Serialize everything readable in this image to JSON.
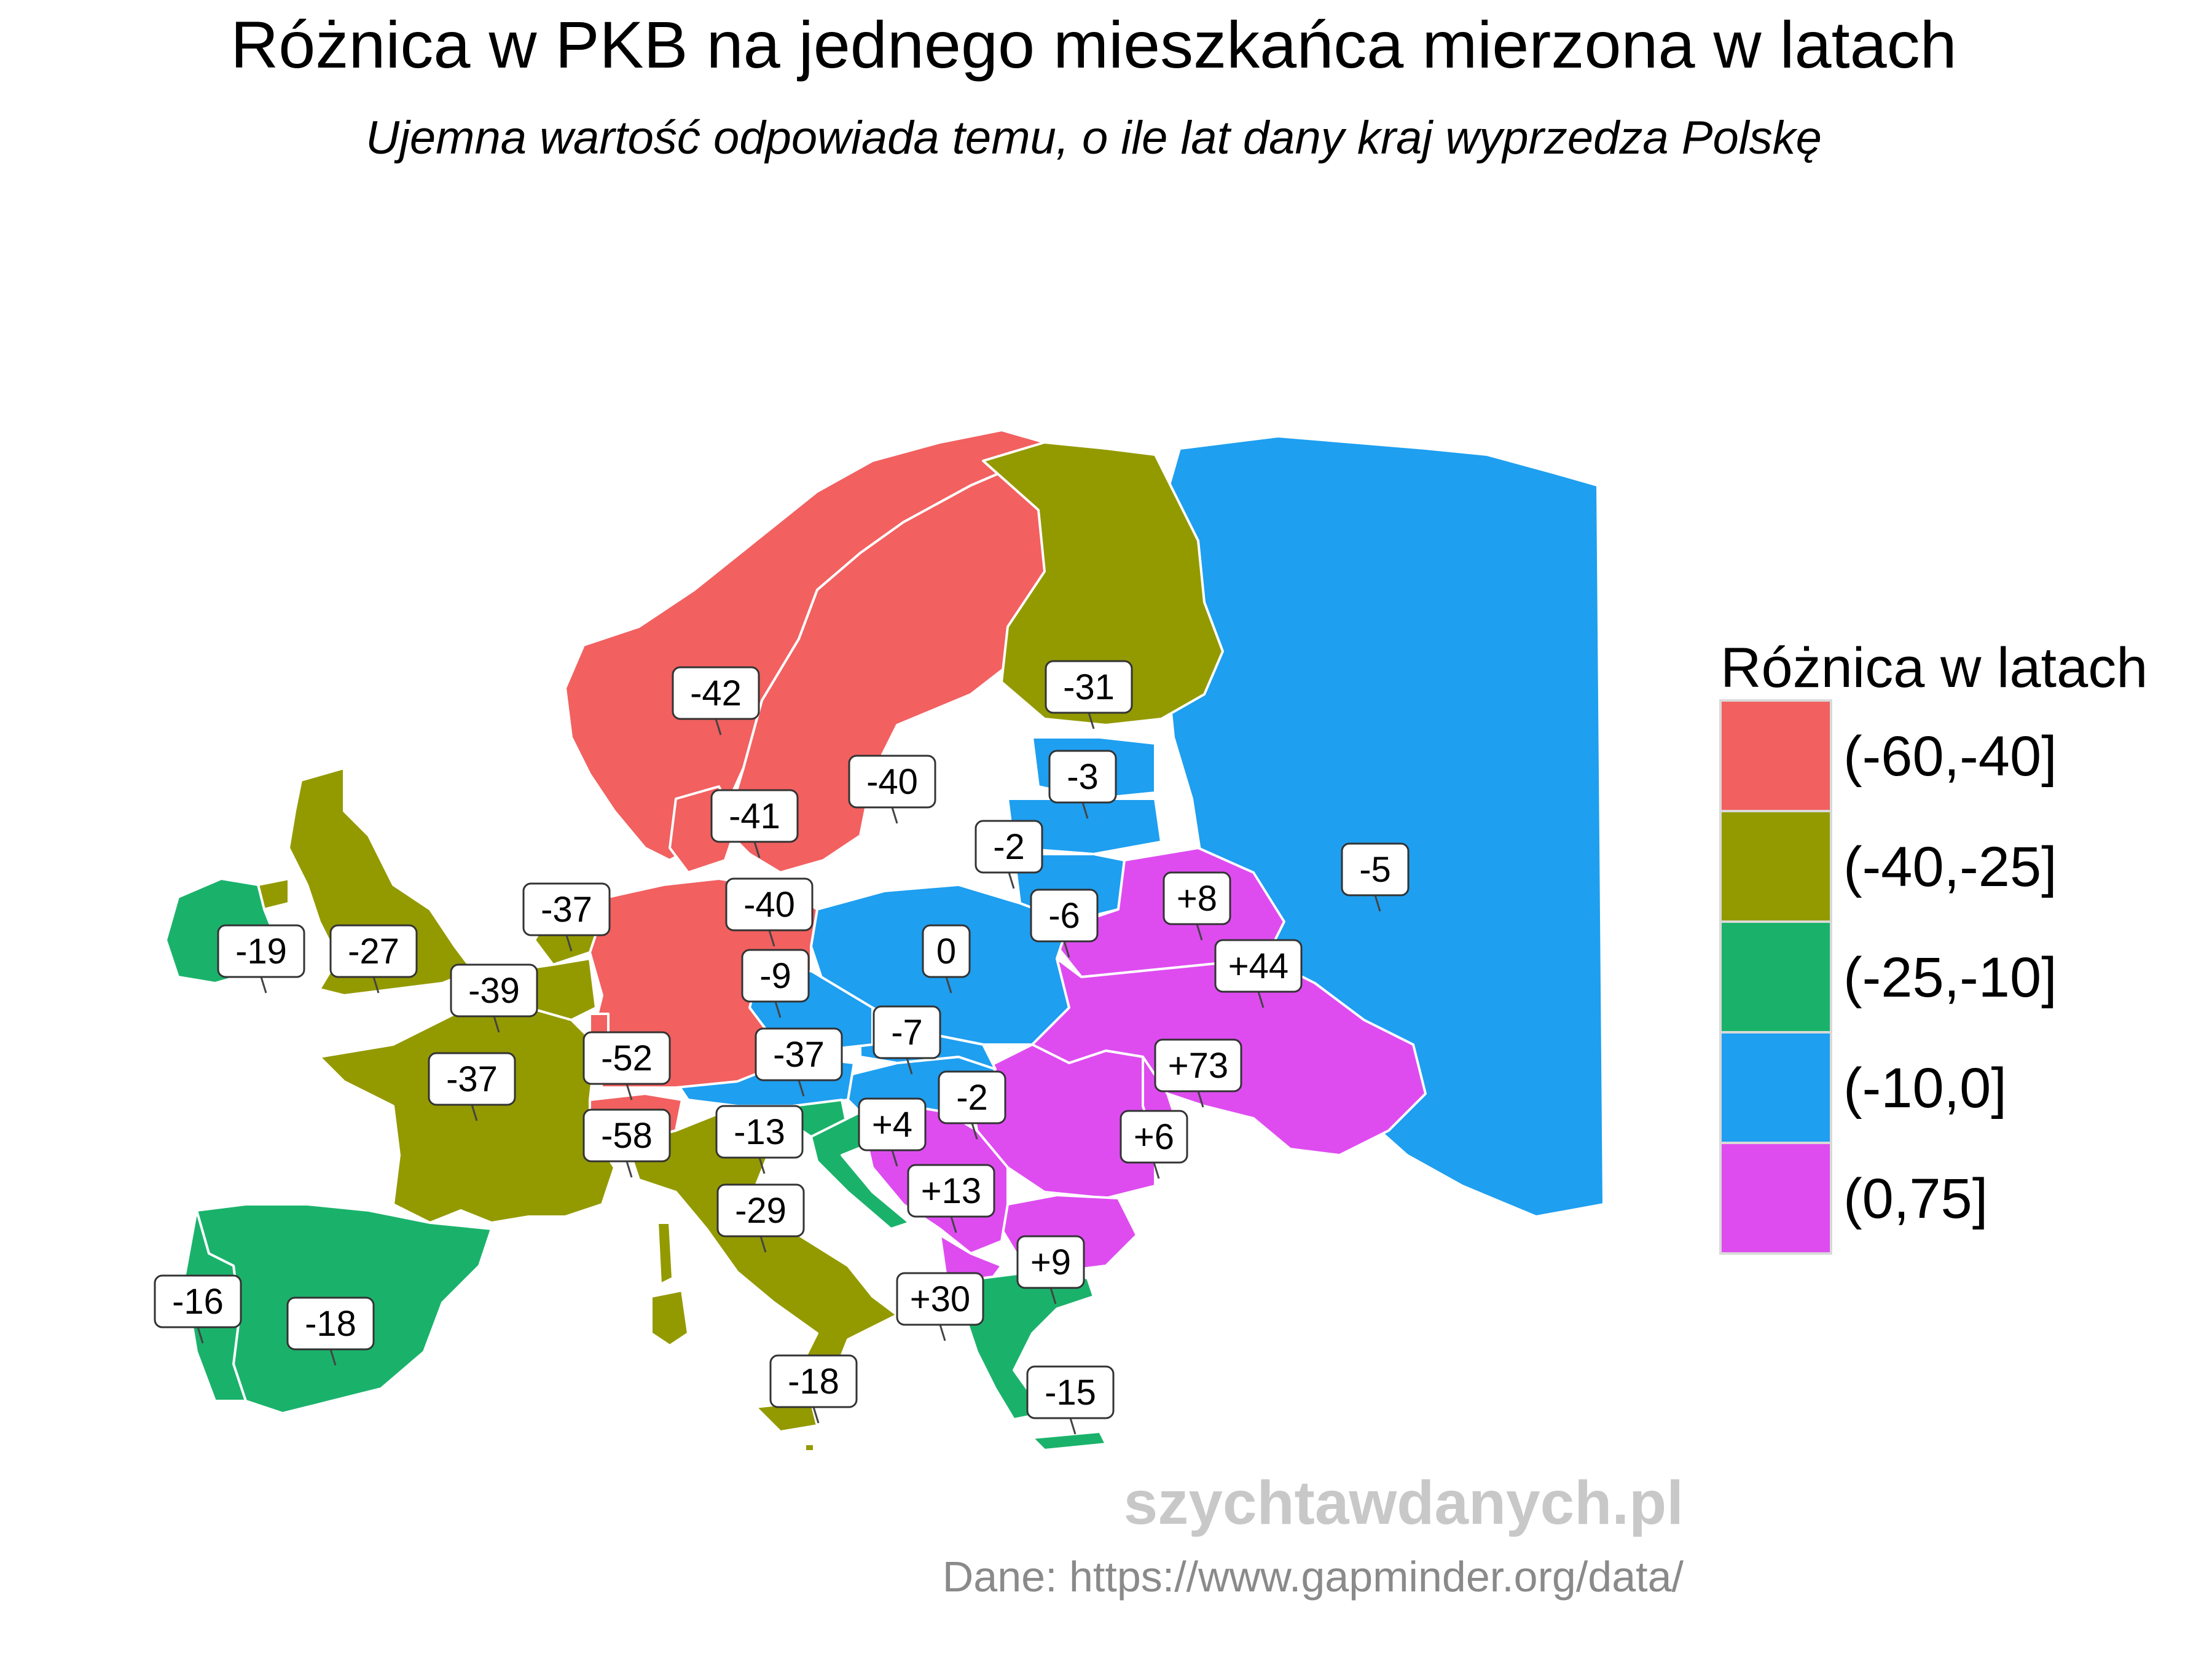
{
  "title": "Różnica w PKB na jednego mieszkańca mierzona w latach",
  "subtitle": "Ujemna wartość odpowiada temu, o ile lat dany kraj wyprzedza Polskę",
  "legend": {
    "title": "Różnica w latach",
    "items": [
      {
        "label": "(-60,-40]",
        "color": "#f26060"
      },
      {
        "label": "(-40,-25]",
        "color": "#939a00"
      },
      {
        "label": "(-25,-10]",
        "color": "#1ab26b"
      },
      {
        "label": "(-10,0]",
        "color": "#1e9ff0"
      },
      {
        "label": "(0,75]",
        "color": "#de4cf0"
      }
    ]
  },
  "labels": {
    "norway": "-42",
    "finland": "-31",
    "sweden": "-40",
    "estonia": "-3",
    "denmark": "-41",
    "latvia": "-2",
    "netherlands": "-37",
    "germany": "-40",
    "lithuania": "-6",
    "belarus": "+8",
    "russia": "-5",
    "ireland": "-19",
    "uk": "-27",
    "belgium": "-39",
    "czechia": "-9",
    "poland": "0",
    "ukraine": "+44",
    "slovakia": "-7",
    "luxembourg": "-52",
    "austria": "-37",
    "france": "-37",
    "hungary": "-2",
    "moldova": "+73",
    "switzerland": "-58",
    "slovenia": "-13",
    "croatia": "+4",
    "romania": "+6",
    "bosnia": "+13",
    "italy": "-29",
    "bulgaria": "+9",
    "albania": "+30",
    "portugal": "-16",
    "spain": "-18",
    "malta": "-18",
    "greece": "-15"
  },
  "watermark": "szychtawdanych.pl",
  "source": "Dane: https://www.gapminder.org/data/"
}
